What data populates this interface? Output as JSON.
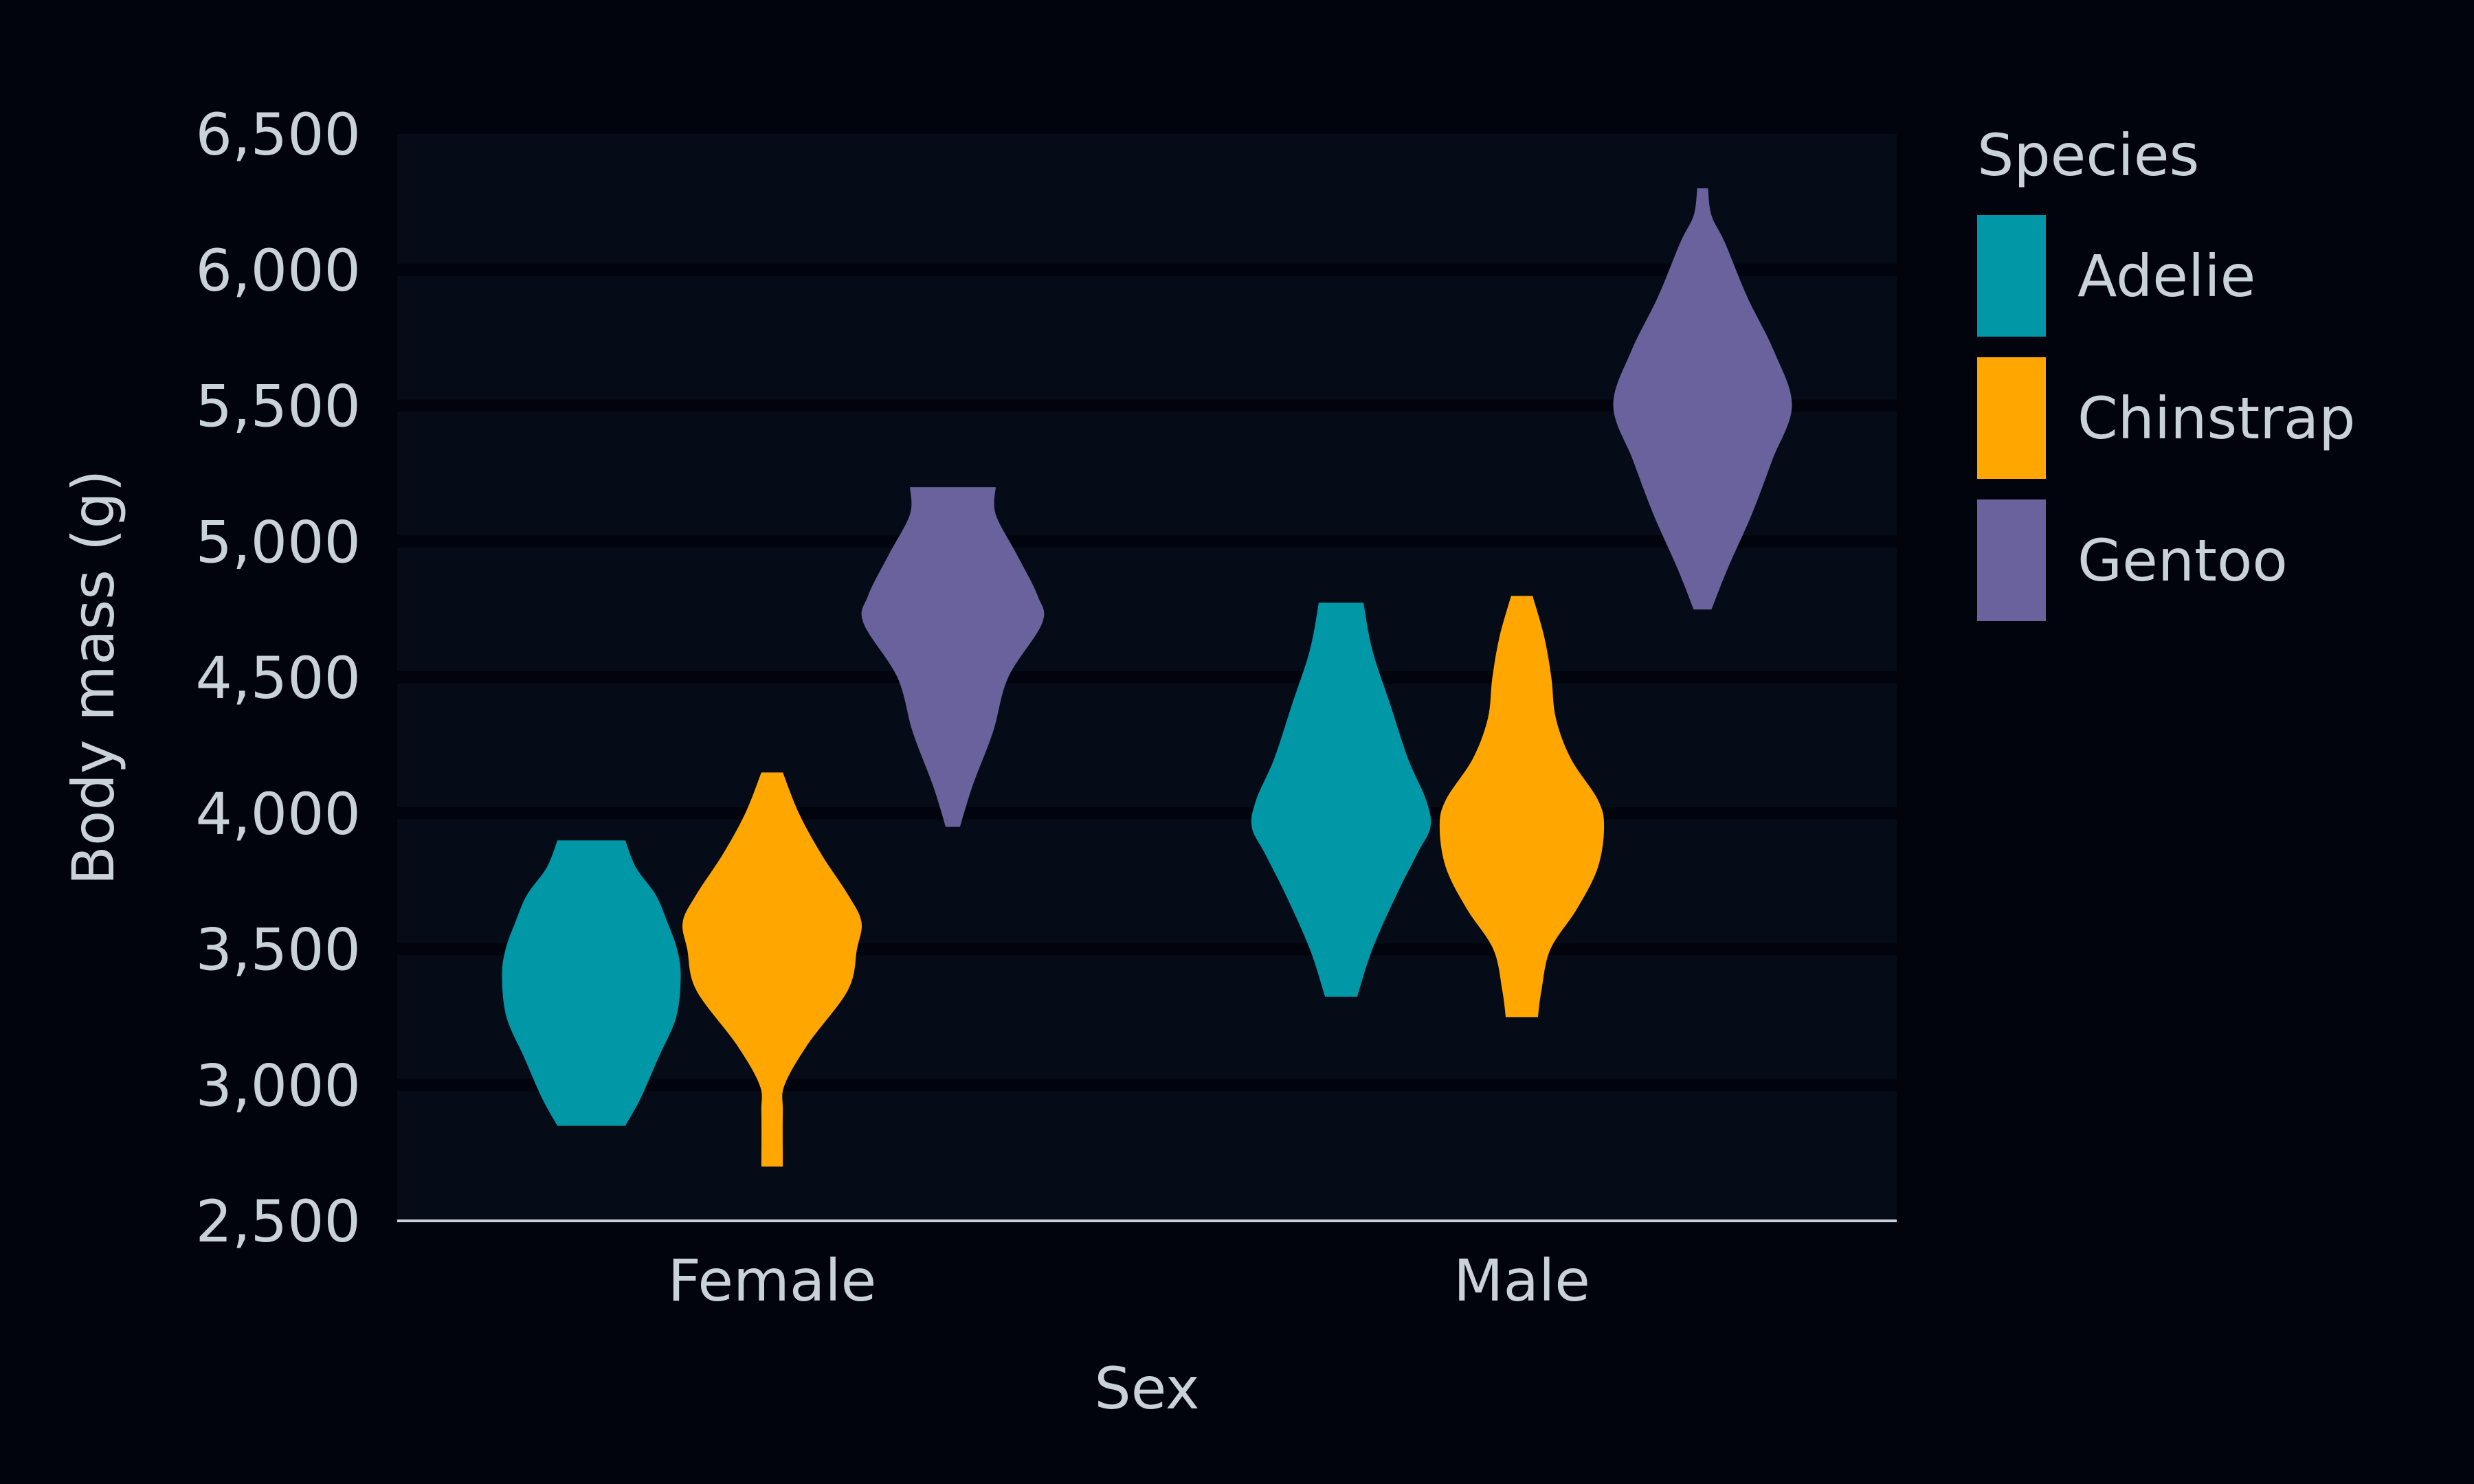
{
  "chart_data": {
    "type": "violin",
    "title": "",
    "xlabel": "Sex",
    "ylabel": "Body mass (g)",
    "ylim": [
      2500,
      6500
    ],
    "y_ticks": [
      2500,
      3000,
      3500,
      4000,
      4500,
      5000,
      5500,
      6000,
      6500
    ],
    "y_tick_labels": [
      "2,500",
      "3,000",
      "3,500",
      "4,000",
      "4,500",
      "5,000",
      "5,500",
      "6,000",
      "6,500"
    ],
    "categories": [
      "Female",
      "Male"
    ],
    "grid": "horizontal",
    "legend": {
      "title": "Species",
      "placement": "right"
    },
    "series": [
      {
        "name": "Adelie",
        "color": "#0097a7",
        "groups": [
          {
            "category": "Female",
            "min": 2850,
            "max": 3900,
            "profile": [
              [
                2850,
                0.38
              ],
              [
                2950,
                0.55
              ],
              [
                3100,
                0.75
              ],
              [
                3250,
                0.95
              ],
              [
                3400,
                1.0
              ],
              [
                3500,
                0.96
              ],
              [
                3600,
                0.85
              ],
              [
                3700,
                0.72
              ],
              [
                3800,
                0.5
              ],
              [
                3900,
                0.38
              ]
            ]
          },
          {
            "category": "Male",
            "min": 3325,
            "max": 4775,
            "profile": [
              [
                3325,
                0.18
              ],
              [
                3500,
                0.35
              ],
              [
                3700,
                0.62
              ],
              [
                3850,
                0.85
              ],
              [
                3950,
                1.0
              ],
              [
                4050,
                0.95
              ],
              [
                4200,
                0.75
              ],
              [
                4400,
                0.55
              ],
              [
                4600,
                0.35
              ],
              [
                4775,
                0.25
              ]
            ]
          }
        ]
      },
      {
        "name": "Chinstrap",
        "color": "#ffa600",
        "groups": [
          {
            "category": "Female",
            "min": 2700,
            "max": 4150,
            "profile": [
              [
                2700,
                0.12
              ],
              [
                2900,
                0.12
              ],
              [
                3000,
                0.14
              ],
              [
                3150,
                0.4
              ],
              [
                3350,
                0.85
              ],
              [
                3500,
                0.95
              ],
              [
                3600,
                1.0
              ],
              [
                3700,
                0.85
              ],
              [
                3850,
                0.55
              ],
              [
                4000,
                0.3
              ],
              [
                4150,
                0.12
              ]
            ]
          },
          {
            "category": "Male",
            "min": 3250,
            "max": 4800,
            "profile": [
              [
                3250,
                0.18
              ],
              [
                3350,
                0.22
              ],
              [
                3500,
                0.32
              ],
              [
                3650,
                0.62
              ],
              [
                3800,
                0.85
              ],
              [
                3950,
                0.92
              ],
              [
                4050,
                0.85
              ],
              [
                4200,
                0.55
              ],
              [
                4350,
                0.38
              ],
              [
                4500,
                0.33
              ],
              [
                4650,
                0.25
              ],
              [
                4800,
                0.12
              ]
            ]
          }
        ]
      },
      {
        "name": "Gentoo",
        "color": "#6a629c",
        "groups": [
          {
            "category": "Female",
            "min": 3950,
            "max": 5200,
            "profile": [
              [
                3950,
                0.08
              ],
              [
                4100,
                0.22
              ],
              [
                4300,
                0.45
              ],
              [
                4500,
                0.62
              ],
              [
                4700,
                1.0
              ],
              [
                4800,
                0.95
              ],
              [
                4950,
                0.72
              ],
              [
                5100,
                0.48
              ],
              [
                5200,
                0.48
              ]
            ]
          },
          {
            "category": "Male",
            "min": 4750,
            "max": 6300,
            "profile": [
              [
                4750,
                0.1
              ],
              [
                4900,
                0.28
              ],
              [
                5100,
                0.55
              ],
              [
                5300,
                0.78
              ],
              [
                5500,
                1.0
              ],
              [
                5700,
                0.8
              ],
              [
                5900,
                0.5
              ],
              [
                6100,
                0.25
              ],
              [
                6200,
                0.1
              ],
              [
                6300,
                0.06
              ]
            ]
          }
        ]
      }
    ]
  }
}
